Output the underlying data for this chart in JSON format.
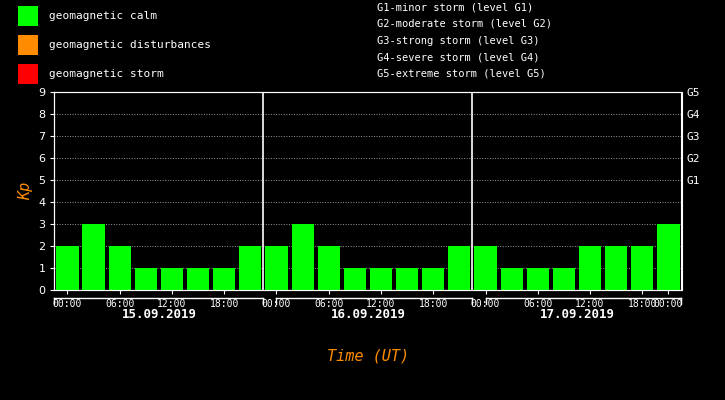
{
  "background_color": "#000000",
  "plot_bg_color": "#000000",
  "bar_color": "#00ff00",
  "axis_color": "#ffffff",
  "xlabel_color": "#ff8c00",
  "ylabel_color": "#ff8c00",
  "grid_color": "#ffffff",
  "legend_text_color": "#ffffff",
  "right_labels_color": "#ffffff",
  "kp_values_day1": [
    2,
    3,
    2,
    1,
    1,
    1,
    1,
    2
  ],
  "kp_values_day2": [
    2,
    3,
    2,
    1,
    1,
    1,
    1,
    2
  ],
  "kp_values_day3": [
    2,
    1,
    1,
    1,
    2,
    2,
    2,
    3
  ],
  "days": [
    "15.09.2019",
    "16.09.2019",
    "17.09.2019"
  ],
  "ylabel": "Kp",
  "xlabel": "Time (UT)",
  "ylim": [
    0,
    9
  ],
  "yticks": [
    0,
    1,
    2,
    3,
    4,
    5,
    6,
    7,
    8,
    9
  ],
  "right_axis_labels": [
    "G1",
    "G2",
    "G3",
    "G4",
    "G5"
  ],
  "right_axis_positions": [
    5,
    6,
    7,
    8,
    9
  ],
  "legend_items": [
    {
      "label": "geomagnetic calm",
      "color": "#00ff00"
    },
    {
      "label": "geomagnetic disturbances",
      "color": "#ff8c00"
    },
    {
      "label": "geomagnetic storm",
      "color": "#ff0000"
    }
  ],
  "legend_text_right": [
    "G1-minor storm (level G1)",
    "G2-moderate storm (level G2)",
    "G3-strong storm (level G3)",
    "G4-severe storm (level G4)",
    "G5-extreme storm (level G5)"
  ]
}
